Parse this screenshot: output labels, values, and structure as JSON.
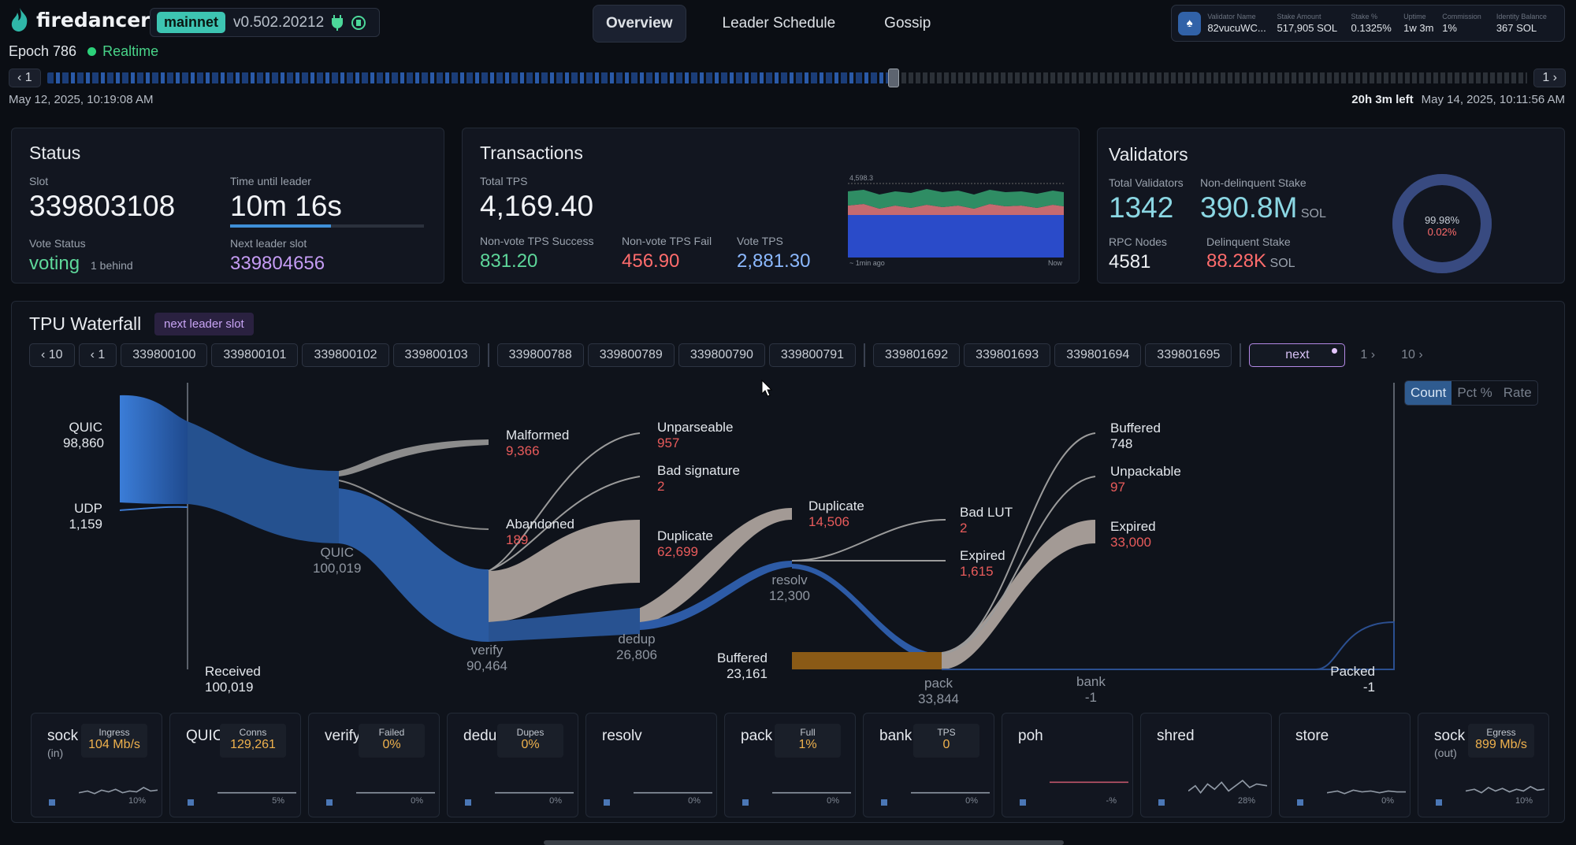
{
  "header": {
    "app_name": "firedancer",
    "network": "mainnet",
    "version": "v0.502.20212",
    "tabs": [
      "Overview",
      "Leader Schedule",
      "Gossip"
    ],
    "validator": {
      "labels": [
        "Validator Name",
        "Stake Amount",
        "Stake %",
        "Uptime",
        "Commission",
        "Identity Balance"
      ],
      "values": [
        "82vucuWC...",
        "517,905 SOL",
        "0.1325%",
        "1w 3m",
        "1%",
        "367 SOL"
      ]
    }
  },
  "epoch": {
    "label": "Epoch 786",
    "mode": "Realtime"
  },
  "timeline": {
    "prev": "1",
    "next": "1",
    "start_date": "May 12, 2025, 10:19:08 AM",
    "time_left": "20h 3m left",
    "end_date": "May 14, 2025, 10:11:56 AM"
  },
  "status": {
    "title": "Status",
    "slot_label": "Slot",
    "slot": "339803108",
    "time_until_leader_label": "Time until leader",
    "time_until_leader": "10m 16s",
    "time_until_leader_progress": 0.52,
    "vote_status_label": "Vote Status",
    "vote_status": "voting",
    "vote_behind": "1 behind",
    "next_leader_slot_label": "Next leader slot",
    "next_leader_slot": "339804656"
  },
  "transactions": {
    "title": "Transactions",
    "total_tps_label": "Total TPS",
    "total_tps": "4,169.40",
    "nonvote_success_label": "Non-vote TPS Success",
    "nonvote_success": "831.20",
    "nonvote_fail_label": "Non-vote TPS Fail",
    "nonvote_fail": "456.90",
    "vote_tps_label": "Vote TPS",
    "vote_tps": "2,881.30",
    "chart_max": "4,598.3",
    "chart_start": "~ 1min ago",
    "chart_end": "Now"
  },
  "validators": {
    "title": "Validators",
    "total_label": "Total Validators",
    "total": "1342",
    "nondelinquent_label": "Non-delinquent Stake",
    "nondelinquent": "390.8M",
    "nondelinquent_unit": "SOL",
    "rpc_label": "RPC Nodes",
    "rpc": "4581",
    "delinquent_label": "Delinquent Stake",
    "delinquent": "88.28K",
    "delinquent_unit": "SOL",
    "donut_main": "99.98%",
    "donut_sub": "0.02%",
    "donut_main_fraction": 0.9998
  },
  "tpu": {
    "title": "TPU Waterfall",
    "badge": "next leader slot",
    "back10": "10",
    "back1": "1",
    "slot_groups": [
      [
        "339800100",
        "339800101",
        "339800102",
        "339800103"
      ],
      [
        "339800788",
        "339800789",
        "339800790",
        "339800791"
      ],
      [
        "339801692",
        "339801693",
        "339801694",
        "339801695"
      ]
    ],
    "next": "next",
    "fwd1": "1",
    "fwd10": "10",
    "modes": [
      "Count",
      "Pct %",
      "Rate"
    ],
    "sankey": {
      "quic_in": {
        "name": "QUIC",
        "value": "98,860"
      },
      "udp_in": {
        "name": "UDP",
        "value": "1,159"
      },
      "received": {
        "name": "Received",
        "value": "100,019"
      },
      "quic_mid": {
        "name": "QUIC",
        "value": "100,019"
      },
      "malformed": {
        "name": "Malformed",
        "value": "9,366"
      },
      "abandoned": {
        "name": "Abandoned",
        "value": "189"
      },
      "unparseable": {
        "name": "Unparseable",
        "value": "957"
      },
      "bad_signature": {
        "name": "Bad signature",
        "value": "2"
      },
      "duplicate1": {
        "name": "Duplicate",
        "value": "62,699"
      },
      "verify": {
        "name": "verify",
        "value": "90,464"
      },
      "dedup": {
        "name": "dedup",
        "value": "26,806"
      },
      "duplicate2": {
        "name": "Duplicate",
        "value": "14,506"
      },
      "resolv": {
        "name": "resolv",
        "value": "12,300"
      },
      "bad_lut": {
        "name": "Bad LUT",
        "value": "2"
      },
      "expired1": {
        "name": "Expired",
        "value": "1,615"
      },
      "buffered_in": {
        "name": "Buffered",
        "value": "23,161"
      },
      "pack": {
        "name": "pack",
        "value": "33,844"
      },
      "buffered_out": {
        "name": "Buffered",
        "value": "748"
      },
      "unpackable": {
        "name": "Unpackable",
        "value": "97"
      },
      "expired2": {
        "name": "Expired",
        "value": "33,000"
      },
      "bank": {
        "name": "bank",
        "value": "-1"
      },
      "packed": {
        "name": "Packed",
        "value": "-1"
      }
    }
  },
  "tiles": [
    {
      "name": "sock",
      "sub": "(in)",
      "metric": "Ingress",
      "value": "104 Mb/s",
      "pct": "10%"
    },
    {
      "name": "QUIC",
      "sub": "",
      "metric": "Conns",
      "value": "129,261",
      "pct": "5%"
    },
    {
      "name": "verify",
      "sub": "",
      "metric": "Failed",
      "value": "0%",
      "pct": "0%"
    },
    {
      "name": "dedup",
      "sub": "",
      "metric": "Dupes",
      "value": "0%",
      "pct": "0%"
    },
    {
      "name": "resolv",
      "sub": "",
      "metric": "",
      "value": "",
      "pct": "0%"
    },
    {
      "name": "pack",
      "sub": "",
      "metric": "Full",
      "value": "1%",
      "pct": "0%"
    },
    {
      "name": "bank",
      "sub": "",
      "metric": "TPS",
      "value": "0",
      "pct": "0%"
    },
    {
      "name": "poh",
      "sub": "",
      "metric": "",
      "value": "",
      "pct": "-%"
    },
    {
      "name": "shred",
      "sub": "",
      "metric": "",
      "value": "",
      "pct": "28%"
    },
    {
      "name": "store",
      "sub": "",
      "metric": "",
      "value": "",
      "pct": "0%"
    },
    {
      "name": "sock",
      "sub": "(out)",
      "metric": "Egress",
      "value": "899 Mb/s",
      "pct": "10%"
    }
  ]
}
